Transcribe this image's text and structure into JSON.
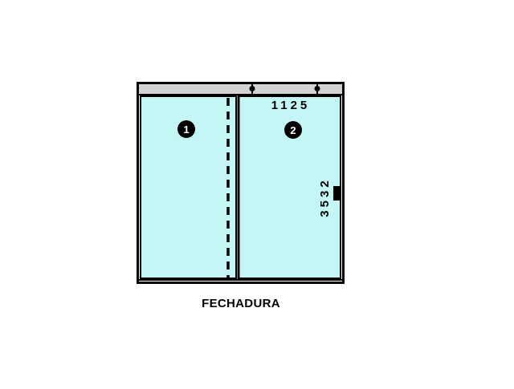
{
  "colors": {
    "glass": "#c4f6f6",
    "frame": "#000000",
    "rail": "#d3d3d3",
    "background": "#ffffff"
  },
  "panels": [
    {
      "number": "1",
      "kind": "fixed"
    },
    {
      "number": "2",
      "kind": "sliding"
    }
  ],
  "dimensions": {
    "width_label": "1125",
    "height_label": "3532"
  },
  "caption": "FECHADURA",
  "icons": [
    "roller-icon",
    "lock-handle-icon"
  ]
}
